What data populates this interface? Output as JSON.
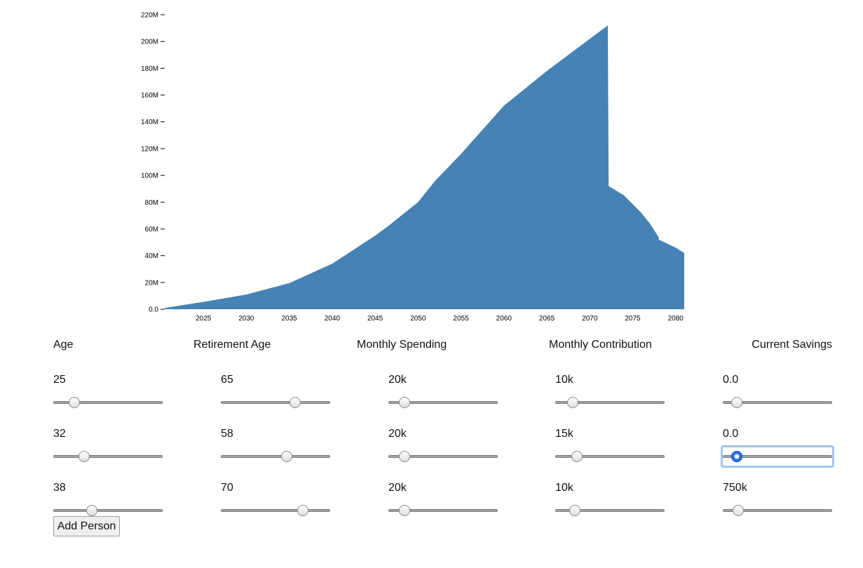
{
  "chart_data": {
    "type": "area",
    "title": "",
    "xlabel": "",
    "ylabel": "",
    "x_ticks": [
      "2025",
      "2030",
      "2035",
      "2040",
      "2045",
      "2050",
      "2055",
      "2060",
      "2065",
      "2070",
      "2075",
      "2080"
    ],
    "y_ticks": [
      "0.0",
      "20M",
      "40M",
      "60M",
      "80M",
      "100M",
      "120M",
      "140M",
      "160M",
      "180M",
      "200M",
      "220M"
    ],
    "xlim": [
      2020.5,
      2081
    ],
    "ylim": [
      0,
      220000000
    ],
    "color": "#4682b4",
    "x": [
      2020.5,
      2025,
      2030,
      2035,
      2040,
      2045,
      2046.5,
      2050,
      2052,
      2055,
      2060,
      2065,
      2070,
      2072.1,
      2072.2,
      2074,
      2076,
      2077,
      2078,
      2078.05,
      2080,
      2081
    ],
    "y": [
      1000000,
      5500000,
      11000000,
      19500000,
      34000000,
      55000000,
      62000000,
      80000000,
      96000000,
      116000000,
      152000000,
      178000000,
      202000000,
      212000000,
      92000000,
      85000000,
      72000000,
      64000000,
      54000000,
      52000000,
      46000000,
      42000000
    ]
  },
  "controls": {
    "headers": {
      "age": "Age",
      "retirement_age": "Retirement Age",
      "monthly_spending": "Monthly Spending",
      "monthly_contribution": "Monthly Contribution",
      "current_savings": "Current Savings"
    },
    "people": [
      {
        "age": "25",
        "retirement_age": "65",
        "monthly_spending": "20k",
        "monthly_contribution": "10k",
        "current_savings": "0.0",
        "slider_fractions": [
          0.19,
          0.68,
          0.15,
          0.16,
          0.13
        ]
      },
      {
        "age": "32",
        "retirement_age": "58",
        "monthly_spending": "20k",
        "monthly_contribution": "15k",
        "current_savings": "0.0",
        "slider_fractions": [
          0.28,
          0.6,
          0.15,
          0.2,
          0.13
        ]
      },
      {
        "age": "38",
        "retirement_age": "70",
        "monthly_spending": "20k",
        "monthly_contribution": "10k",
        "current_savings": "750k",
        "slider_fractions": [
          0.35,
          0.75,
          0.15,
          0.18,
          0.14
        ]
      }
    ],
    "add_person_label": "Add Person"
  }
}
